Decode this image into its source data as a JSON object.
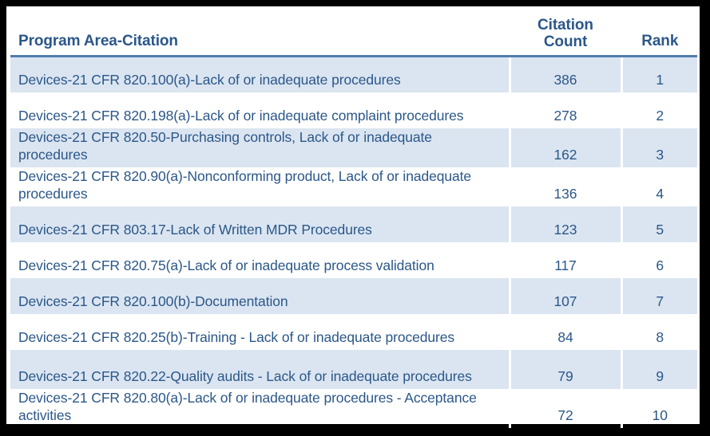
{
  "table": {
    "columns": {
      "program": "Program Area-Citation",
      "count": "Citation Count",
      "rank": "Rank"
    },
    "rows": [
      {
        "program": "Devices-21 CFR 820.100(a)-Lack of or inadequate procedures",
        "count": "386",
        "rank": "1"
      },
      {
        "program": "Devices-21 CFR 820.198(a)-Lack of or inadequate complaint procedures",
        "count": "278",
        "rank": "2"
      },
      {
        "program": "Devices-21 CFR 820.50-Purchasing controls, Lack of or inadequate procedures",
        "count": "162",
        "rank": "3"
      },
      {
        "program": "Devices-21 CFR 820.90(a)-Nonconforming product, Lack of or inadequate procedures",
        "count": "136",
        "rank": "4"
      },
      {
        "program": "Devices-21 CFR 803.17-Lack of Written MDR Procedures",
        "count": "123",
        "rank": "5"
      },
      {
        "program": "Devices-21 CFR 820.75(a)-Lack of or inadequate process validation",
        "count": "117",
        "rank": "6"
      },
      {
        "program": "Devices-21 CFR 820.100(b)-Documentation",
        "count": "107",
        "rank": "7"
      },
      {
        "program": "Devices-21 CFR 820.25(b)-Training - Lack of or inadequate procedures",
        "count": "84",
        "rank": "8"
      },
      {
        "program": "Devices-21 CFR 820.22-Quality audits - Lack of or inadequate procedures",
        "count": "79",
        "rank": "9"
      },
      {
        "program": "Devices-21 CFR 820.80(a)-Lack of or inadequate procedures - Acceptance activities",
        "count": "72",
        "rank": "10"
      }
    ]
  },
  "colors": {
    "text": "#2b5789",
    "row_shade": "#dbe5f1",
    "header_underline": "#4f7dac",
    "frame_border": "#000000",
    "background": "#ffffff"
  }
}
